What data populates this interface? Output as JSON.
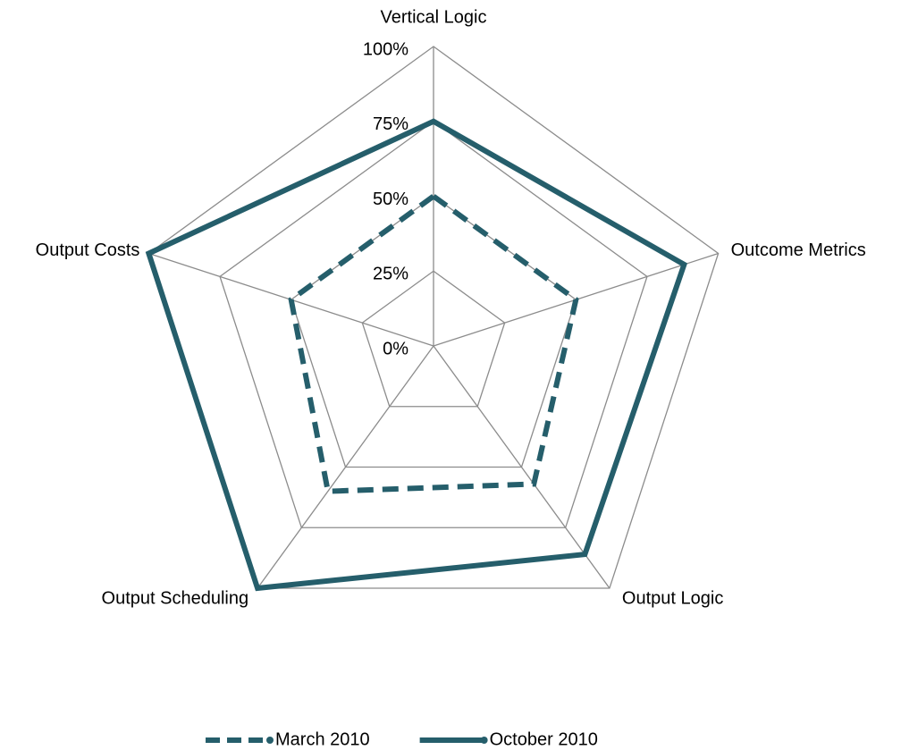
{
  "chart_data": {
    "type": "radar",
    "categories": [
      "Vertical Logic",
      "Outcome Metrics",
      "Output Logic",
      "Output Scheduling",
      "Output Costs"
    ],
    "series": [
      {
        "name": "March 2010",
        "color": "#255e6b",
        "dashed": true,
        "values": [
          50,
          50,
          57,
          60,
          50
        ]
      },
      {
        "name": "October 2010",
        "color": "#255e6b",
        "dashed": false,
        "values": [
          75,
          88,
          86,
          100,
          100
        ]
      }
    ],
    "ylim": [
      0,
      100
    ],
    "yticks": [
      {
        "value": 0,
        "label": "0%"
      },
      {
        "value": 25,
        "label": "25%"
      },
      {
        "value": 50,
        "label": "50%"
      },
      {
        "value": 75,
        "label": "75%"
      },
      {
        "value": 100,
        "label": "100%"
      }
    ],
    "grid": true,
    "legend": "bottom"
  }
}
